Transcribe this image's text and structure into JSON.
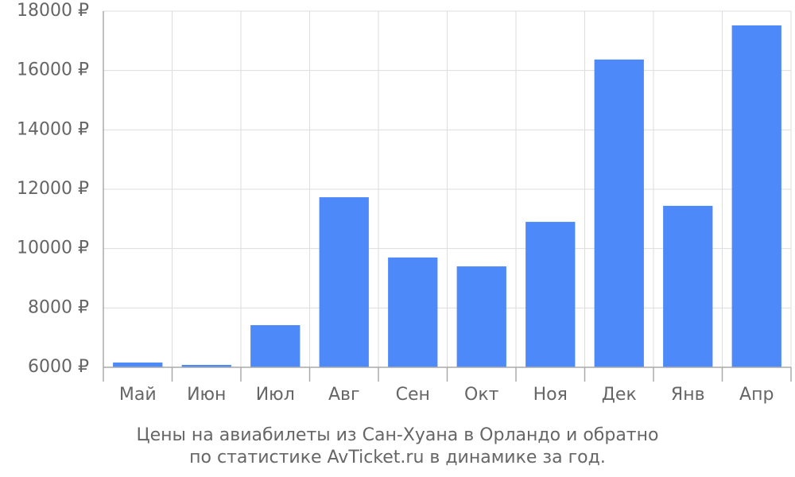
{
  "chart_data": {
    "type": "bar",
    "title": "Цены на авиабилеты из Сан-Хуана в Орландо и обратно",
    "subtitle": "по статистике AvTicket.ru в динамике за год.",
    "categories": [
      "Май",
      "Июн",
      "Июл",
      "Авг",
      "Сен",
      "Окт",
      "Ноя",
      "Дек",
      "Янв",
      "Апр"
    ],
    "values": [
      6160,
      6080,
      7420,
      11730,
      9700,
      9400,
      10900,
      16370,
      11440,
      17520
    ],
    "color": "#4d89f9",
    "ylim": [
      6000,
      18000
    ],
    "yticks": [
      {
        "value": 6000,
        "label": "6000 ₽"
      },
      {
        "value": 8000,
        "label": "8000 ₽"
      },
      {
        "value": 10000,
        "label": "10000 ₽"
      },
      {
        "value": 12000,
        "label": "12000 ₽"
      },
      {
        "value": 14000,
        "label": "14000 ₽"
      },
      {
        "value": 16000,
        "label": "16000 ₽"
      },
      {
        "value": 18000,
        "label": "18000 ₽"
      }
    ],
    "grid": true
  }
}
